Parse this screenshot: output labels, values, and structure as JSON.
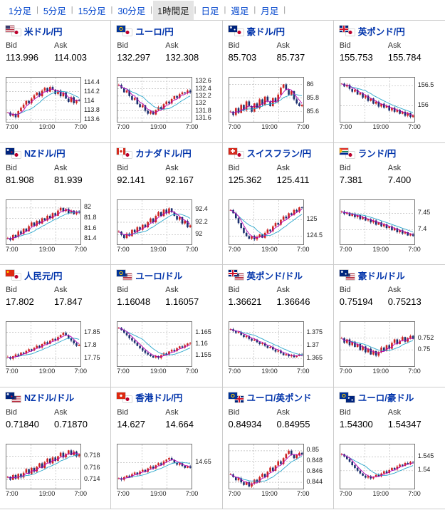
{
  "tabs": {
    "items": [
      "1分足",
      "5分足",
      "15分足",
      "30分足",
      "1時間足",
      "日足",
      "週足",
      "月足"
    ],
    "active": "1時間足"
  },
  "labels": {
    "bid": "Bid",
    "ask": "Ask"
  },
  "xticks": [
    "7:00",
    "19:00",
    "7:00"
  ],
  "colors": {
    "link": "#0044cc",
    "pair_name": "#0033aa",
    "up": "#cc2222",
    "down": "#1b2f6e",
    "ma_fast": "#b400b4",
    "ma_slow": "#2ea8cc",
    "grid": "#bbbbbb",
    "chart_border": "#777777",
    "active_tab_bg": "#e4e4e4"
  },
  "panels": [
    {
      "pair": "米ドル/円",
      "flags": [
        "us",
        "jp"
      ],
      "bid": "113.996",
      "ask": "114.003",
      "type": "candlestick",
      "ylim": [
        113.55,
        114.5
      ],
      "ytick_vals": [
        114.4,
        114.2,
        114.0,
        113.8,
        113.6
      ],
      "ytick_labels": [
        "114.4",
        "114.2",
        "114",
        "113.8",
        "113.6"
      ],
      "closes": [
        113.75,
        113.68,
        113.72,
        113.65,
        113.78,
        113.85,
        113.92,
        114.0,
        113.95,
        114.05,
        114.12,
        114.18,
        114.1,
        114.22,
        114.28,
        114.2,
        114.3,
        114.24,
        114.15,
        114.22,
        114.1,
        114.18,
        114.05,
        113.98,
        114.08,
        113.95,
        114.02,
        114.0
      ]
    },
    {
      "pair": "ユーロ/円",
      "flags": [
        "eu",
        "jp"
      ],
      "bid": "132.297",
      "ask": "132.308",
      "type": "candlestick",
      "ylim": [
        131.5,
        132.7
      ],
      "ytick_vals": [
        132.6,
        132.4,
        132.2,
        132.0,
        131.8,
        131.6
      ],
      "ytick_labels": [
        "132.6",
        "132.4",
        "132.2",
        "132",
        "131.8",
        "131.6"
      ],
      "closes": [
        132.5,
        132.42,
        132.3,
        132.35,
        132.2,
        132.1,
        132.15,
        131.98,
        131.9,
        131.95,
        131.8,
        131.72,
        131.78,
        131.7,
        131.82,
        131.9,
        131.85,
        131.98,
        132.05,
        132.0,
        132.12,
        132.2,
        132.15,
        132.25,
        132.3,
        132.28,
        132.35,
        132.3
      ]
    },
    {
      "pair": "豪ドル/円",
      "flags": [
        "au",
        "jp"
      ],
      "bid": "85.703",
      "ask": "85.737",
      "type": "candlestick",
      "ylim": [
        85.45,
        86.1
      ],
      "ytick_vals": [
        86.0,
        85.8,
        85.6
      ],
      "ytick_labels": [
        "86",
        "85.8",
        "85.6"
      ],
      "closes": [
        85.6,
        85.55,
        85.65,
        85.58,
        85.7,
        85.62,
        85.75,
        85.68,
        85.6,
        85.72,
        85.65,
        85.78,
        85.7,
        85.82,
        85.75,
        85.68,
        85.8,
        85.74,
        85.85,
        85.95,
        86.0,
        85.92,
        85.85,
        85.9,
        85.78,
        85.72,
        85.68,
        85.7
      ]
    },
    {
      "pair": "英ポンド/円",
      "flags": [
        "gb",
        "jp"
      ],
      "bid": "155.753",
      "ask": "155.784",
      "type": "candlestick",
      "ylim": [
        155.6,
        156.7
      ],
      "ytick_vals": [
        156.5,
        156.0
      ],
      "ytick_labels": [
        "156.5",
        "156"
      ],
      "closes": [
        156.55,
        156.48,
        156.52,
        156.42,
        156.35,
        156.4,
        156.28,
        156.32,
        156.2,
        156.25,
        156.12,
        156.18,
        156.05,
        156.1,
        155.98,
        156.05,
        155.95,
        156.0,
        155.88,
        155.95,
        155.85,
        155.9,
        155.8,
        155.85,
        155.75,
        155.82,
        155.72,
        155.76
      ]
    },
    {
      "pair": "NZドル/円",
      "flags": [
        "nz",
        "jp"
      ],
      "bid": "81.908",
      "ask": "81.939",
      "type": "candlestick",
      "ylim": [
        81.3,
        82.15
      ],
      "ytick_vals": [
        82.0,
        81.8,
        81.6,
        81.4
      ],
      "ytick_labels": [
        "82",
        "81.8",
        "81.6",
        "81.4"
      ],
      "closes": [
        81.42,
        81.38,
        81.48,
        81.44,
        81.55,
        81.5,
        81.6,
        81.55,
        81.65,
        81.72,
        81.66,
        81.75,
        81.7,
        81.8,
        81.76,
        81.85,
        81.8,
        81.9,
        81.85,
        81.95,
        82.0,
        81.94,
        81.98,
        81.9,
        81.95,
        81.88,
        81.93,
        81.91
      ]
    },
    {
      "pair": "カナダドル/円",
      "flags": [
        "ca",
        "jp"
      ],
      "bid": "92.141",
      "ask": "92.167",
      "type": "candlestick",
      "ylim": [
        91.85,
        92.55
      ],
      "ytick_vals": [
        92.4,
        92.2,
        92.0
      ],
      "ytick_labels": [
        "92.4",
        "92.2",
        "92"
      ],
      "closes": [
        92.05,
        92.0,
        91.95,
        92.02,
        91.98,
        92.08,
        92.04,
        92.12,
        92.08,
        92.16,
        92.12,
        92.2,
        92.26,
        92.2,
        92.3,
        92.36,
        92.3,
        92.4,
        92.34,
        92.42,
        92.36,
        92.3,
        92.24,
        92.28,
        92.18,
        92.22,
        92.12,
        92.15
      ]
    },
    {
      "pair": "スイスフラン/円",
      "flags": [
        "ch",
        "jp"
      ],
      "bid": "125.362",
      "ask": "125.411",
      "type": "candlestick",
      "ylim": [
        124.25,
        125.6
      ],
      "ytick_vals": [
        125.0,
        124.5
      ],
      "ytick_labels": [
        "125",
        "124.5"
      ],
      "closes": [
        125.3,
        125.2,
        125.05,
        124.9,
        124.75,
        124.6,
        124.5,
        124.42,
        124.5,
        124.4,
        124.48,
        124.55,
        124.45,
        124.6,
        124.7,
        124.65,
        124.8,
        124.9,
        124.85,
        125.0,
        125.1,
        125.05,
        125.2,
        125.15,
        125.3,
        125.25,
        125.38,
        125.36
      ]
    },
    {
      "pair": "ランド/円",
      "flags": [
        "za",
        "jp"
      ],
      "bid": "7.381",
      "ask": "7.400",
      "type": "candlestick",
      "ylim": [
        7.355,
        7.49
      ],
      "ytick_vals": [
        7.45,
        7.4
      ],
      "ytick_labels": [
        "7.45",
        "7.4"
      ],
      "closes": [
        7.455,
        7.448,
        7.452,
        7.442,
        7.448,
        7.438,
        7.444,
        7.432,
        7.438,
        7.428,
        7.432,
        7.422,
        7.428,
        7.415,
        7.422,
        7.41,
        7.416,
        7.405,
        7.41,
        7.398,
        7.404,
        7.392,
        7.398,
        7.388,
        7.392,
        7.382,
        7.386,
        7.381
      ]
    },
    {
      "pair": "人民元/円",
      "flags": [
        "cn",
        "jp"
      ],
      "bid": "17.802",
      "ask": "17.847",
      "type": "candlestick",
      "ylim": [
        17.72,
        17.89
      ],
      "ytick_vals": [
        17.85,
        17.8,
        17.75
      ],
      "ytick_labels": [
        "17.85",
        "17.8",
        "17.75"
      ],
      "closes": [
        17.755,
        17.748,
        17.758,
        17.765,
        17.76,
        17.772,
        17.768,
        17.778,
        17.785,
        17.78,
        17.79,
        17.798,
        17.792,
        17.805,
        17.812,
        17.806,
        17.818,
        17.825,
        17.82,
        17.832,
        17.84,
        17.848,
        17.838,
        17.828,
        17.818,
        17.808,
        17.798,
        17.802
      ]
    },
    {
      "pair": "ユーロ/ドル",
      "flags": [
        "eu",
        "us"
      ],
      "bid": "1.16048",
      "ask": "1.16057",
      "type": "candlestick",
      "ylim": [
        1.1505,
        1.1695
      ],
      "ytick_vals": [
        1.165,
        1.16,
        1.155
      ],
      "ytick_labels": [
        "1.165",
        "1.16",
        "1.155"
      ],
      "closes": [
        1.167,
        1.166,
        1.1648,
        1.1638,
        1.1625,
        1.1615,
        1.1605,
        1.1592,
        1.1582,
        1.1572,
        1.1562,
        1.1555,
        1.1548,
        1.1542,
        1.1548,
        1.154,
        1.1552,
        1.156,
        1.1555,
        1.1568,
        1.1575,
        1.157,
        1.1582,
        1.159,
        1.1585,
        1.1595,
        1.1602,
        1.1605
      ]
    },
    {
      "pair": "英ポンド/ドル",
      "flags": [
        "gb",
        "us"
      ],
      "bid": "1.36621",
      "ask": "1.36646",
      "type": "candlestick",
      "ylim": [
        1.362,
        1.379
      ],
      "ytick_vals": [
        1.375,
        1.37,
        1.365
      ],
      "ytick_labels": [
        "1.375",
        "1.37",
        "1.365"
      ],
      "closes": [
        1.3762,
        1.3755,
        1.3748,
        1.3752,
        1.374,
        1.3732,
        1.3736,
        1.3725,
        1.3718,
        1.3722,
        1.3712,
        1.3705,
        1.3708,
        1.3698,
        1.369,
        1.3694,
        1.3684,
        1.3676,
        1.368,
        1.367,
        1.3662,
        1.3666,
        1.3658,
        1.3662,
        1.3655,
        1.366,
        1.3665,
        1.3662
      ]
    },
    {
      "pair": "豪ドル/ドル",
      "flags": [
        "au",
        "us"
      ],
      "bid": "0.75194",
      "ask": "0.75213",
      "type": "candlestick",
      "ylim": [
        0.7472,
        0.7548
      ],
      "ytick_vals": [
        0.752,
        0.75
      ],
      "ytick_labels": [
        "0.752",
        "0.75"
      ],
      "closes": [
        0.752,
        0.7512,
        0.7518,
        0.7508,
        0.7514,
        0.7505,
        0.751,
        0.75,
        0.7506,
        0.7496,
        0.7502,
        0.7492,
        0.7498,
        0.749,
        0.7496,
        0.7504,
        0.7498,
        0.7508,
        0.7502,
        0.7512,
        0.7518,
        0.751,
        0.7516,
        0.7522,
        0.7514,
        0.752,
        0.7524,
        0.7519
      ]
    },
    {
      "pair": "NZドル/ドル",
      "flags": [
        "nz",
        "us"
      ],
      "bid": "0.71840",
      "ask": "0.71870",
      "type": "candlestick",
      "ylim": [
        0.7125,
        0.72
      ],
      "ytick_vals": [
        0.718,
        0.716,
        0.714
      ],
      "ytick_labels": [
        "0.718",
        "0.716",
        "0.714"
      ],
      "closes": [
        0.7145,
        0.714,
        0.7148,
        0.7142,
        0.715,
        0.7144,
        0.7152,
        0.7158,
        0.715,
        0.716,
        0.7154,
        0.7162,
        0.7168,
        0.716,
        0.717,
        0.7176,
        0.7168,
        0.7178,
        0.7172,
        0.718,
        0.7186,
        0.7178,
        0.7184,
        0.719,
        0.7182,
        0.7188,
        0.718,
        0.7184
      ]
    },
    {
      "pair": "香港ドル/円",
      "flags": [
        "hk",
        "jp"
      ],
      "bid": "14.627",
      "ask": "14.664",
      "type": "candlestick",
      "ylim": [
        14.55,
        14.72
      ],
      "ytick_vals": [
        14.65
      ],
      "ytick_labels": [
        "14.65"
      ],
      "closes": [
        14.59,
        14.584,
        14.594,
        14.6,
        14.595,
        14.606,
        14.612,
        14.605,
        14.616,
        14.622,
        14.615,
        14.628,
        14.635,
        14.628,
        14.64,
        14.648,
        14.642,
        14.655,
        14.662,
        14.668,
        14.66,
        14.65,
        14.642,
        14.648,
        14.638,
        14.63,
        14.636,
        14.63
      ]
    },
    {
      "pair": "ユーロ/英ポンド",
      "flags": [
        "eu",
        "gb"
      ],
      "bid": "0.84934",
      "ask": "0.84955",
      "type": "candlestick",
      "ylim": [
        0.8428,
        0.8512
      ],
      "ytick_vals": [
        0.85,
        0.848,
        0.846,
        0.844
      ],
      "ytick_labels": [
        "0.85",
        "0.848",
        "0.846",
        "0.844"
      ],
      "closes": [
        0.8455,
        0.845,
        0.8444,
        0.8448,
        0.844,
        0.8435,
        0.844,
        0.8432,
        0.8438,
        0.8445,
        0.844,
        0.845,
        0.8456,
        0.845,
        0.846,
        0.8468,
        0.8462,
        0.8472,
        0.848,
        0.8475,
        0.8486,
        0.8494,
        0.85,
        0.8492,
        0.8486,
        0.8492,
        0.8496,
        0.8493
      ]
    },
    {
      "pair": "ユーロ/豪ドル",
      "flags": [
        "eu",
        "au"
      ],
      "bid": "1.54300",
      "ask": "1.54347",
      "type": "candlestick",
      "ylim": [
        1.5335,
        1.5495
      ],
      "ytick_vals": [
        1.545,
        1.54
      ],
      "ytick_labels": [
        "1.545",
        "1.54"
      ],
      "closes": [
        1.546,
        1.5452,
        1.5442,
        1.5432,
        1.542,
        1.541,
        1.54,
        1.539,
        1.5382,
        1.5375,
        1.538,
        1.5372,
        1.5378,
        1.5385,
        1.538,
        1.539,
        1.5398,
        1.5392,
        1.5402,
        1.541,
        1.5405,
        1.5415,
        1.5422,
        1.5418,
        1.5428,
        1.5424,
        1.5432,
        1.543
      ]
    }
  ]
}
